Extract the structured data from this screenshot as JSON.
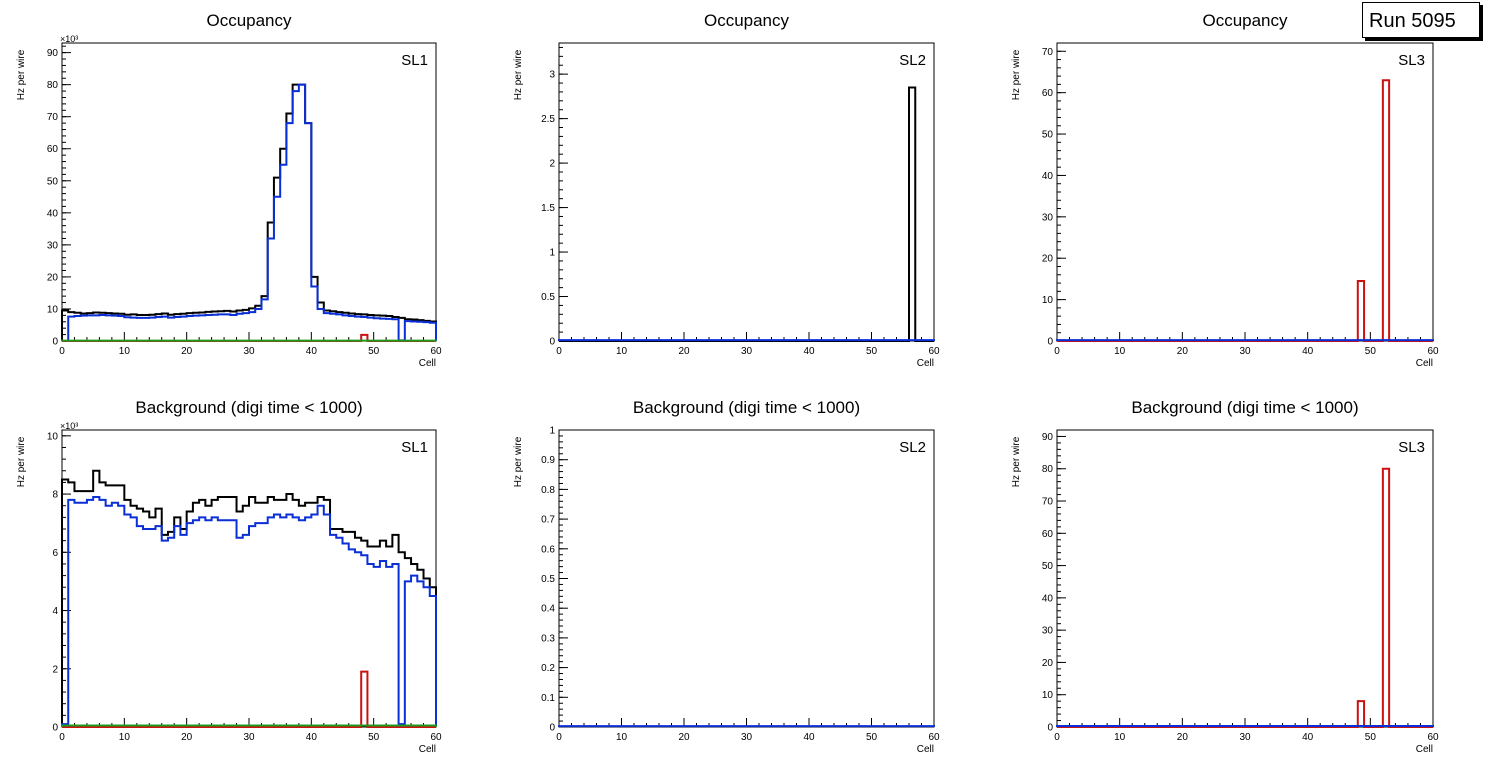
{
  "run_label": "Run 5095",
  "colors": {
    "black": "#000000",
    "blue": "#0a2fd6",
    "red": "#cc1111",
    "green": "#1f9a1f"
  },
  "chart_data": [
    {
      "type": "histogram",
      "title": "Occupancy",
      "ylabel": "Hz per wire",
      "xlabel": "Cell",
      "label": "SL1",
      "xlim": [
        0,
        60
      ],
      "ylim": [
        0,
        93
      ],
      "y_multiplier": "×10³",
      "xticks": [
        0,
        10,
        20,
        30,
        40,
        50,
        60
      ],
      "yticks": [
        0,
        10,
        20,
        30,
        40,
        50,
        60,
        70,
        80,
        90
      ],
      "series": [
        {
          "color": "black",
          "values": [
            9.5,
            9,
            8.8,
            8.6,
            8.7,
            8.9,
            8.8,
            8.7,
            8.6,
            8.5,
            8.2,
            8.3,
            8.1,
            8.1,
            8.2,
            8.4,
            8.6,
            8.2,
            8.4,
            8.5,
            8.7,
            8.8,
            8.9,
            9.1,
            9.2,
            9.3,
            9.4,
            9.2,
            9.5,
            9.7,
            10.2,
            11,
            14,
            37,
            51,
            60,
            71,
            80,
            80,
            68,
            20,
            12,
            9.5,
            9.3,
            9,
            8.8,
            8.6,
            8.4,
            8.3,
            8.1,
            8,
            7.9,
            7.8,
            7.5,
            7.2,
            6.8,
            6.7,
            6.5,
            6.3,
            6.1
          ]
        },
        {
          "color": "blue",
          "values": [
            0,
            7.6,
            7.8,
            7.9,
            8,
            8,
            8.1,
            8,
            7.9,
            7.8,
            7.4,
            7.3,
            7.2,
            7.2,
            7.3,
            7.5,
            7.6,
            7.3,
            7.5,
            7.6,
            7.8,
            7.9,
            8,
            8.1,
            8.2,
            8.3,
            8.3,
            8.1,
            8.5,
            8.7,
            9,
            10,
            13,
            32,
            45,
            55,
            68,
            78,
            80,
            68,
            17,
            10,
            8.7,
            8.5,
            8.3,
            8,
            7.8,
            7.6,
            7.5,
            7.3,
            7.1,
            7,
            6.9,
            6.8,
            0.2,
            6.2,
            6.1,
            6,
            5.9,
            5.7
          ]
        },
        {
          "color": "red",
          "values": [
            0,
            0,
            0,
            0,
            0,
            0,
            0,
            0,
            0,
            0,
            0,
            0,
            0,
            0,
            0,
            0,
            0,
            0,
            0,
            0,
            0,
            0,
            0,
            0,
            0,
            0,
            0,
            0,
            0,
            0,
            0,
            0,
            0,
            0,
            0,
            0,
            0,
            0,
            0,
            0,
            0,
            0,
            0,
            0,
            0,
            0,
            0,
            0,
            1.9,
            0,
            0,
            0,
            0,
            0,
            0,
            0,
            0,
            0,
            0,
            0
          ]
        },
        {
          "color": "green",
          "values": [
            0.1,
            0.1,
            0.1,
            0.1,
            0.1,
            0.1,
            0.1,
            0.1,
            0.1,
            0.1,
            0.1,
            0.1,
            0.1,
            0.1,
            0.1,
            0.1,
            0.1,
            0.1,
            0.1,
            0.1,
            0.1,
            0.1,
            0.1,
            0.1,
            0.1,
            0.1,
            0.1,
            0.1,
            0.1,
            0.1,
            0.1,
            0.1,
            0.1,
            0.1,
            0.1,
            0.1,
            0.1,
            0.1,
            0.1,
            0.1,
            0.1,
            0.1,
            0.1,
            0.1,
            0.1,
            0.1,
            0.1,
            0.1,
            0.1,
            0.1,
            0.1,
            0.1,
            0.1,
            0.1,
            0.1,
            0.1,
            0.1,
            0.1,
            0.1,
            0.1
          ]
        }
      ]
    },
    {
      "type": "histogram",
      "title": "Occupancy",
      "ylabel": "Hz per wire",
      "xlabel": "Cell",
      "label": "SL2",
      "xlim": [
        0,
        60
      ],
      "ylim": [
        0,
        3.35
      ],
      "y_multiplier": "",
      "xticks": [
        0,
        10,
        20,
        30,
        40,
        50,
        60
      ],
      "yticks": [
        0,
        0.5,
        1,
        1.5,
        2,
        2.5,
        3
      ],
      "series": [
        {
          "color": "black",
          "values": [
            0,
            0,
            0,
            0,
            0,
            0,
            0,
            0,
            0,
            0,
            0,
            0,
            0,
            0,
            0,
            0,
            0,
            0,
            0,
            0,
            0,
            0,
            0,
            0,
            0,
            0,
            0,
            0,
            0,
            0,
            0,
            0,
            0,
            0,
            0,
            0,
            0,
            0,
            0,
            0,
            0,
            0,
            0,
            0,
            0,
            0,
            0,
            0,
            0,
            0,
            0,
            0,
            0,
            0,
            0,
            0,
            2.85,
            0,
            0,
            0
          ]
        },
        {
          "color": "blue",
          "values": [
            0.01,
            0.01,
            0.01,
            0.01,
            0.01,
            0.01,
            0.01,
            0.01,
            0.01,
            0.01,
            0.01,
            0.01,
            0.01,
            0.01,
            0.01,
            0.01,
            0.01,
            0.01,
            0.01,
            0.01,
            0.01,
            0.01,
            0.01,
            0.01,
            0.01,
            0.01,
            0.01,
            0.01,
            0.01,
            0.01,
            0.01,
            0.01,
            0.01,
            0.01,
            0.01,
            0.01,
            0.01,
            0.01,
            0.01,
            0.01,
            0.01,
            0.01,
            0.01,
            0.01,
            0.01,
            0.01,
            0.01,
            0.01,
            0.01,
            0.01,
            0.01,
            0.01,
            0.01,
            0.01,
            0.01,
            0.01,
            0.01,
            0.01,
            0.01,
            0.01
          ]
        }
      ]
    },
    {
      "type": "histogram",
      "title": "Occupancy",
      "ylabel": "Hz per wire",
      "xlabel": "Cell",
      "label": "SL3",
      "xlim": [
        0,
        60
      ],
      "ylim": [
        0,
        72
      ],
      "y_multiplier": "",
      "xticks": [
        0,
        10,
        20,
        30,
        40,
        50,
        60
      ],
      "yticks": [
        0,
        10,
        20,
        30,
        40,
        50,
        60,
        70
      ],
      "series": [
        {
          "color": "red",
          "values": [
            0,
            0,
            0,
            0,
            0,
            0,
            0,
            0,
            0,
            0,
            0,
            0,
            0,
            0,
            0,
            0,
            0,
            0,
            0,
            0,
            0,
            0,
            0,
            0,
            0,
            0,
            0,
            0,
            0,
            0,
            0,
            0,
            0,
            0,
            0,
            0,
            0,
            0,
            0,
            0,
            0,
            0,
            0,
            0,
            0,
            0,
            0,
            0,
            14.5,
            0,
            0,
            0,
            63,
            0,
            0,
            0,
            0,
            0,
            0,
            0
          ]
        },
        {
          "color": "blue",
          "values": [
            0.2,
            0.2,
            0.2,
            0.2,
            0.2,
            0.2,
            0.2,
            0.2,
            0.2,
            0.2,
            0.2,
            0.2,
            0.2,
            0.2,
            0.2,
            0.2,
            0.2,
            0.2,
            0.2,
            0.2,
            0.2,
            0.2,
            0.2,
            0.2,
            0.2,
            0.2,
            0.2,
            0.2,
            0.2,
            0.2,
            0.2,
            0.2,
            0.2,
            0.2,
            0.2,
            0.2,
            0.2,
            0.2,
            0.2,
            0.2,
            0.2,
            0.2,
            0.2,
            0.2,
            0.2,
            0.2,
            0.2,
            0.2,
            0.2,
            0.2,
            0.2,
            0.2,
            0.2,
            0.2,
            0.2,
            0.2,
            0.2,
            0.2,
            0.2,
            0.2
          ]
        }
      ]
    },
    {
      "type": "histogram",
      "title": "Background (digi time < 1000)",
      "ylabel": "Hz per wire",
      "xlabel": "Cell",
      "label": "SL1",
      "xlim": [
        0,
        60
      ],
      "ylim": [
        0,
        10.2
      ],
      "y_multiplier": "×10³",
      "xticks": [
        0,
        10,
        20,
        30,
        40,
        50,
        60
      ],
      "yticks": [
        0,
        2,
        4,
        6,
        8,
        10
      ],
      "series": [
        {
          "color": "black",
          "values": [
            8.5,
            8.4,
            8.1,
            8.1,
            8.1,
            8.8,
            8.4,
            8.3,
            8.3,
            8.3,
            7.8,
            7.6,
            7.5,
            7.4,
            7.2,
            7.5,
            6.6,
            6.7,
            7.2,
            6.8,
            7.4,
            7.7,
            7.8,
            7.6,
            7.8,
            7.9,
            7.9,
            7.9,
            7.4,
            7.6,
            7.9,
            7.7,
            7.7,
            7.9,
            7.8,
            7.8,
            8,
            7.8,
            7.6,
            7.7,
            7.7,
            7.9,
            7.8,
            6.8,
            6.8,
            6.7,
            6.7,
            6.5,
            6.4,
            6.2,
            6.2,
            6.4,
            6.2,
            6.6,
            6,
            5.8,
            5.6,
            5.4,
            5.1,
            4.8
          ]
        },
        {
          "color": "blue",
          "values": [
            0.1,
            7.8,
            7.7,
            7.7,
            7.8,
            7.9,
            7.8,
            7.6,
            7.7,
            7.6,
            7.3,
            7.2,
            6.9,
            6.8,
            6.8,
            6.9,
            6.4,
            6.5,
            6.9,
            6.6,
            7,
            7.1,
            7.2,
            7.1,
            7.2,
            7.1,
            7.1,
            7.1,
            6.5,
            6.6,
            6.9,
            7,
            7,
            7.2,
            7.3,
            7.2,
            7.3,
            7.2,
            7.1,
            7.2,
            7.3,
            7.6,
            7.3,
            6.6,
            6.5,
            6.3,
            6.1,
            6,
            5.9,
            5.6,
            5.5,
            5.7,
            5.5,
            5.6,
            0.1,
            5,
            5.2,
            5,
            4.8,
            4.5
          ]
        },
        {
          "color": "red",
          "values": [
            0,
            0,
            0,
            0,
            0,
            0,
            0,
            0,
            0,
            0,
            0,
            0,
            0,
            0,
            0,
            0,
            0,
            0,
            0,
            0,
            0,
            0,
            0,
            0,
            0,
            0,
            0,
            0,
            0,
            0,
            0,
            0,
            0,
            0,
            0,
            0,
            0,
            0,
            0,
            0,
            0,
            0,
            0,
            0,
            0,
            0,
            0,
            0,
            1.9,
            0,
            0,
            0,
            0,
            0,
            0,
            0,
            0,
            0,
            0,
            0
          ]
        },
        {
          "color": "green",
          "values": [
            0.05,
            0.05,
            0.05,
            0.05,
            0.05,
            0.05,
            0.05,
            0.05,
            0.05,
            0.05,
            0.05,
            0.05,
            0.05,
            0.05,
            0.05,
            0.05,
            0.05,
            0.05,
            0.05,
            0.05,
            0.05,
            0.05,
            0.05,
            0.05,
            0.05,
            0.05,
            0.05,
            0.05,
            0.05,
            0.05,
            0.05,
            0.05,
            0.05,
            0.05,
            0.05,
            0.05,
            0.05,
            0.05,
            0.05,
            0.05,
            0.05,
            0.05,
            0.05,
            0.05,
            0.05,
            0.05,
            0.05,
            0.05,
            0.05,
            0.05,
            0.05,
            0.05,
            0.05,
            0.05,
            0.05,
            0.05,
            0.05,
            0.05,
            0.05,
            0.05
          ]
        }
      ]
    },
    {
      "type": "histogram",
      "title": "Background (digi time < 1000)",
      "ylabel": "Hz per wire",
      "xlabel": "Cell",
      "label": "SL2",
      "xlim": [
        0,
        60
      ],
      "ylim": [
        0,
        1
      ],
      "y_multiplier": "",
      "xticks": [
        0,
        10,
        20,
        30,
        40,
        50,
        60
      ],
      "yticks": [
        0,
        0.1,
        0.2,
        0.3,
        0.4,
        0.5,
        0.6,
        0.7,
        0.8,
        0.9,
        1
      ],
      "series": [
        {
          "color": "blue",
          "values": [
            0.003,
            0.003,
            0.003,
            0.003,
            0.003,
            0.003,
            0.003,
            0.003,
            0.003,
            0.003,
            0.003,
            0.003,
            0.003,
            0.003,
            0.003,
            0.003,
            0.003,
            0.003,
            0.003,
            0.003,
            0.003,
            0.003,
            0.003,
            0.003,
            0.003,
            0.003,
            0.003,
            0.003,
            0.003,
            0.003,
            0.003,
            0.003,
            0.003,
            0.003,
            0.003,
            0.003,
            0.003,
            0.003,
            0.003,
            0.003,
            0.003,
            0.003,
            0.003,
            0.003,
            0.003,
            0.003,
            0.003,
            0.003,
            0.003,
            0.003,
            0.003,
            0.003,
            0.003,
            0.003,
            0.003,
            0.003,
            0.003,
            0.003,
            0.003,
            0.003
          ]
        }
      ]
    },
    {
      "type": "histogram",
      "title": "Background (digi time < 1000)",
      "ylabel": "Hz per wire",
      "xlabel": "Cell",
      "label": "SL3",
      "xlim": [
        0,
        60
      ],
      "ylim": [
        0,
        92
      ],
      "y_multiplier": "",
      "xticks": [
        0,
        10,
        20,
        30,
        40,
        50,
        60
      ],
      "yticks": [
        0,
        10,
        20,
        30,
        40,
        50,
        60,
        70,
        80,
        90
      ],
      "series": [
        {
          "color": "red",
          "values": [
            0,
            0,
            0,
            0,
            0,
            0,
            0,
            0,
            0,
            0,
            0,
            0,
            0,
            0,
            0,
            0,
            0,
            0,
            0,
            0,
            0,
            0,
            0,
            0,
            0,
            0,
            0,
            0,
            0,
            0,
            0,
            0,
            0,
            0,
            0,
            0,
            0,
            0,
            0,
            0,
            0,
            0,
            0,
            0,
            0,
            0,
            0,
            0,
            8,
            0,
            0,
            0,
            80,
            0,
            0,
            0,
            0,
            0,
            0,
            0
          ]
        },
        {
          "color": "blue",
          "values": [
            0.3,
            0.3,
            0.3,
            0.3,
            0.3,
            0.3,
            0.3,
            0.3,
            0.3,
            0.3,
            0.3,
            0.3,
            0.3,
            0.3,
            0.3,
            0.3,
            0.3,
            0.3,
            0.3,
            0.3,
            0.3,
            0.3,
            0.3,
            0.3,
            0.3,
            0.3,
            0.3,
            0.3,
            0.3,
            0.3,
            0.3,
            0.3,
            0.3,
            0.3,
            0.3,
            0.3,
            0.3,
            0.3,
            0.3,
            0.3,
            0.3,
            0.3,
            0.3,
            0.3,
            0.3,
            0.3,
            0.3,
            0.3,
            0.3,
            0.3,
            0.3,
            0.3,
            0.3,
            0.3,
            0.3,
            0.3,
            0.3,
            0.3,
            0.3,
            0.3
          ]
        }
      ]
    }
  ]
}
